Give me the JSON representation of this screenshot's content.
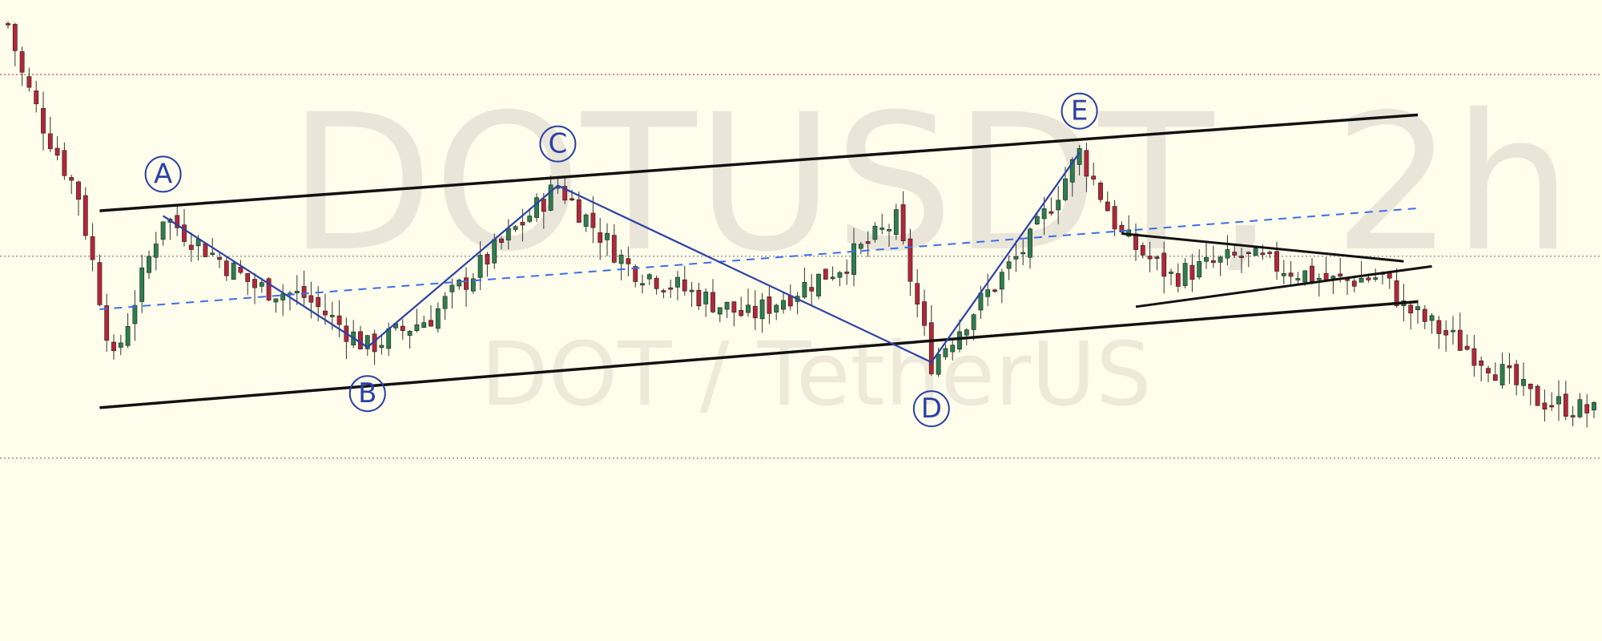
{
  "watermark": {
    "title": "DOTUSDT, 2h",
    "subtitle": "DOT / TetherUS"
  },
  "colors": {
    "background": "#fffdeb",
    "candle_up": "#2e7d4f",
    "candle_down": "#b3263a",
    "wick": "#333333",
    "channel_line": "#111111",
    "wave_line": "#2b41a6",
    "midline": "#3b6fe8",
    "price_line_red": "#e06666",
    "price_line_gray": "#999999"
  },
  "chart_data": {
    "type": "candlestick",
    "symbol": "DOTUSDT",
    "timeframe": "2h",
    "wave_labels": [
      "A",
      "B",
      "C",
      "D",
      "E"
    ],
    "wave_points": [
      {
        "label": "A",
        "bar": 22,
        "price": 0.62
      },
      {
        "label": "B",
        "bar": 51,
        "price": 0.36
      },
      {
        "label": "C",
        "bar": 78,
        "price": 0.68
      },
      {
        "label": "D",
        "bar": 131,
        "price": 0.33
      },
      {
        "label": "E",
        "bar": 152,
        "price": 0.745
      }
    ],
    "anchor_points": [
      {
        "bar": 0,
        "price": 1.0
      },
      {
        "bar": 2,
        "price": 0.9
      },
      {
        "bar": 5,
        "price": 0.8
      },
      {
        "bar": 10,
        "price": 0.66
      },
      {
        "bar": 15,
        "price": 0.33
      },
      {
        "bar": 22,
        "price": 0.62
      },
      {
        "bar": 35,
        "price": 0.48
      },
      {
        "bar": 42,
        "price": 0.46
      },
      {
        "bar": 51,
        "price": 0.36
      },
      {
        "bar": 60,
        "price": 0.42
      },
      {
        "bar": 78,
        "price": 0.68
      },
      {
        "bar": 88,
        "price": 0.52
      },
      {
        "bar": 105,
        "price": 0.42
      },
      {
        "bar": 118,
        "price": 0.52
      },
      {
        "bar": 126,
        "price": 0.61
      },
      {
        "bar": 131,
        "price": 0.33
      },
      {
        "bar": 145,
        "price": 0.57
      },
      {
        "bar": 152,
        "price": 0.745
      },
      {
        "bar": 158,
        "price": 0.58
      },
      {
        "bar": 165,
        "price": 0.5
      },
      {
        "bar": 175,
        "price": 0.54
      },
      {
        "bar": 188,
        "price": 0.49
      },
      {
        "bar": 195,
        "price": 0.5
      },
      {
        "bar": 198,
        "price": 0.44
      },
      {
        "bar": 210,
        "price": 0.33
      },
      {
        "bar": 216,
        "price": 0.26
      },
      {
        "bar": 225,
        "price": 0.23
      }
    ],
    "channel": {
      "upper": {
        "from": {
          "bar": 13,
          "price": 0.63
        },
        "to": {
          "bar": 200,
          "price": 0.82
        }
      },
      "lower": {
        "from": {
          "bar": 13,
          "price": 0.24
        },
        "to": {
          "bar": 200,
          "price": 0.45
        }
      },
      "mid": {
        "from": {
          "bar": 13,
          "price": 0.435
        },
        "to": {
          "bar": 200,
          "price": 0.635
        }
      }
    },
    "triangle": {
      "upper": {
        "from": {
          "bar": 158,
          "price": 0.585
        },
        "to": {
          "bar": 198,
          "price": 0.53
        }
      },
      "lower": {
        "from": {
          "bar": 160,
          "price": 0.44
        },
        "to": {
          "bar": 202,
          "price": 0.52
        }
      }
    },
    "horizontal_levels": [
      {
        "price": 0.9,
        "style": "red-dotted"
      },
      {
        "price": 0.54,
        "style": "gray-dotted"
      },
      {
        "price": 0.14,
        "style": "gray-dotted"
      }
    ],
    "bar_count": 226,
    "price_range": [
      -0.1,
      1.2
    ]
  }
}
